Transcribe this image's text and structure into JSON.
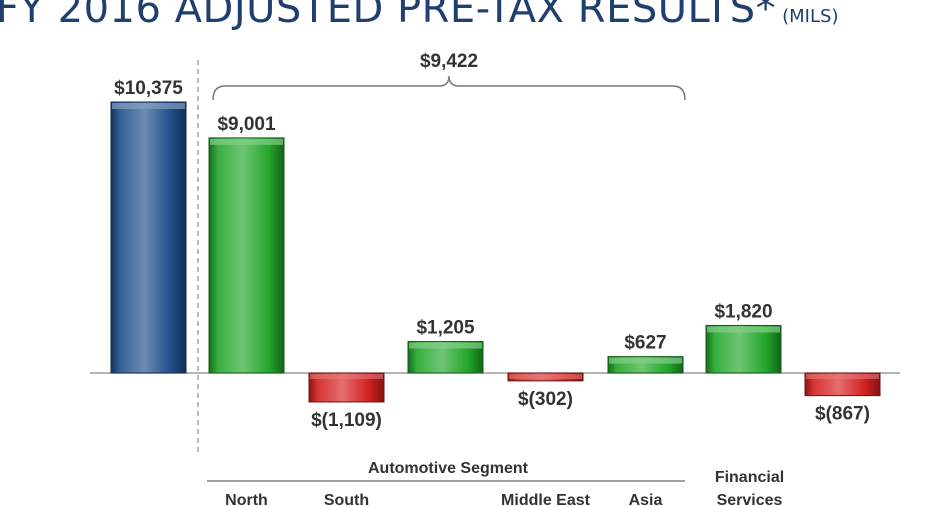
{
  "title": "FY 2016 ADJUSTED PRE-TAX RESULTS*",
  "title_unit": "(MILS)",
  "chart_data": {
    "type": "bar",
    "title": "FY 2016 ADJUSTED PRE-TAX RESULTS* (MILS)",
    "xlabel": "",
    "ylabel": "",
    "ylim": [
      -1500,
      11000
    ],
    "grid": false,
    "bars": [
      {
        "category": "",
        "value": 10375,
        "label": "$10,375",
        "color": "#1f4e8c"
      },
      {
        "category": "North",
        "value": 9001,
        "label": "$9,001",
        "color": "#22a62a"
      },
      {
        "category": "South",
        "value": -1109,
        "label": "$(1,109)",
        "color": "#d42020"
      },
      {
        "category": "",
        "value": 1205,
        "label": "$1,205",
        "color": "#22a62a"
      },
      {
        "category": "Middle East",
        "value": -302,
        "label": "$(302)",
        "color": "#d42020"
      },
      {
        "category": "Asia",
        "value": 627,
        "label": "$627",
        "color": "#22a62a"
      },
      {
        "category": "Financial Services",
        "value": 1820,
        "label": "$1,820",
        "color": "#22a62a"
      },
      {
        "category": "",
        "value": -867,
        "label": "$(867)",
        "color": "#d42020"
      }
    ],
    "annotations": [
      {
        "text": "$9,422",
        "type": "bracket",
        "from_bar": 1,
        "to_bar": 5
      }
    ],
    "group_labels": [
      {
        "text": "Automotive Segment",
        "from_bar": 1,
        "to_bar": 5
      }
    ],
    "category_labels": [
      {
        "bar": 1,
        "text": "North"
      },
      {
        "bar": 2,
        "text": "South"
      },
      {
        "bar": 4,
        "text": "Middle East"
      },
      {
        "bar": 5,
        "text": "Asia"
      },
      {
        "bar": 6,
        "lines": [
          "Financial",
          "Services"
        ]
      }
    ]
  }
}
